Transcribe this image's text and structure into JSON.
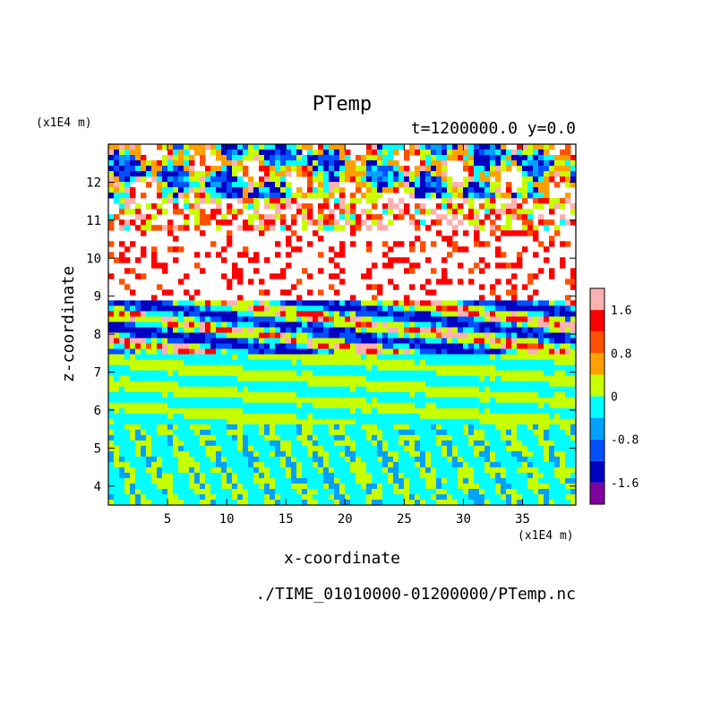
{
  "chart_data": {
    "type": "heatmap",
    "title": "PTemp",
    "subtitle": "t=1200000.0 y=0.0",
    "xlabel": "x-coordinate",
    "ylabel": "z-coordinate",
    "x_unit": "(x1E4 m)",
    "y_unit": "(x1E4 m)",
    "footer": "./TIME_01010000-01200000/PTemp.nc",
    "xlim": [
      0,
      39.5
    ],
    "ylim": [
      3.5,
      13
    ],
    "x_ticks": [
      5,
      10,
      15,
      20,
      25,
      30,
      35
    ],
    "x_tick_labels": [
      "5",
      "10",
      "15",
      "20",
      "25",
      "30",
      "35"
    ],
    "y_ticks": [
      4,
      5,
      6,
      7,
      8,
      9,
      10,
      11,
      12
    ],
    "y_tick_labels": [
      "4",
      "5",
      "6",
      "7",
      "8",
      "9",
      "10",
      "11",
      "12"
    ],
    "colorbar": {
      "levels": [
        -2.0,
        -1.6,
        -1.2,
        -0.8,
        -0.4,
        0,
        0.4,
        0.8,
        1.2,
        1.6,
        2.0
      ],
      "colors": [
        "#8000a0",
        "#0000c0",
        "#0050ff",
        "#00a0ff",
        "#00ffff",
        "#c8ff00",
        "#ffa000",
        "#ff5000",
        "#ff0000",
        "#ffb0b0"
      ],
      "tick_values": [
        -1.6,
        -0.8,
        0,
        0.8,
        1.6
      ],
      "tick_labels": [
        "-1.6",
        "-0.8",
        "0",
        "0.8",
        "1.6"
      ]
    }
  }
}
